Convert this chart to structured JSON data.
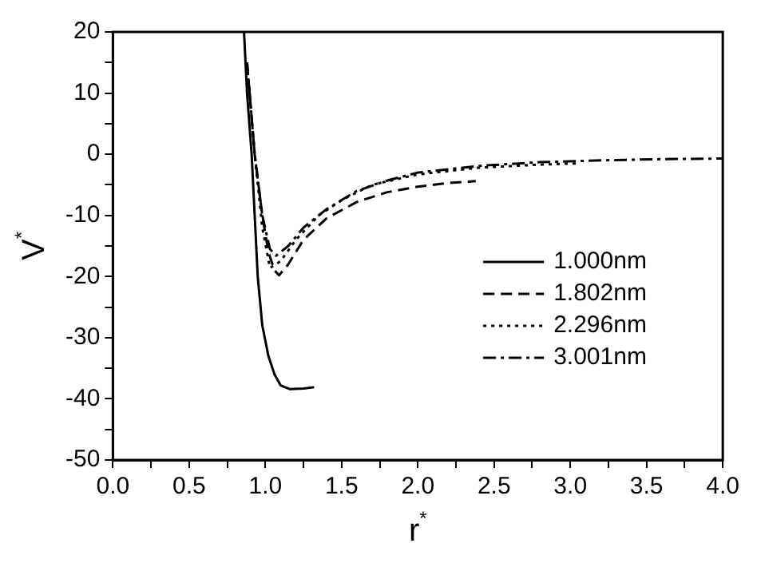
{
  "chart_data": {
    "type": "line",
    "xlabel": "r$^{*}$",
    "ylabel": "V$^{*}$",
    "xlim": [
      0,
      4
    ],
    "xticks": [
      {
        "value": 0,
        "label": "0.0"
      },
      0.5,
      {
        "value": 1,
        "label": "1.0"
      },
      1.5,
      {
        "value": 2,
        "label": "2.0"
      },
      2.5,
      {
        "value": 3,
        "label": "3.0"
      },
      3.5,
      {
        "value": 4,
        "label": "4.0"
      }
    ],
    "ylim": [
      -50,
      20
    ],
    "yticks": [
      -50,
      -40,
      -30,
      -20,
      -10,
      0,
      10,
      20
    ],
    "legend": "right",
    "grid": false,
    "marker": "none",
    "series": [
      {
        "name": "1.000nm",
        "color": "#000000",
        "line_style": "solid",
        "x": [
          0.86,
          0.88,
          0.91,
          0.93,
          0.95,
          0.98,
          1.02,
          1.06,
          1.1,
          1.16,
          1.25,
          1.32
        ],
        "values": [
          20,
          10,
          0,
          -10,
          -20,
          -28,
          -33,
          -36,
          -37.8,
          -38.4,
          -38.3,
          -38.1
        ]
      },
      {
        "name": "1.802nm",
        "color": "#000000",
        "line_style": "dashed",
        "x": [
          0.88,
          0.93,
          0.98,
          1.02,
          1.06,
          1.09,
          1.15,
          1.25,
          1.4,
          1.6,
          1.8,
          2.0,
          2.2,
          2.38
        ],
        "values": [
          15,
          0,
          -10,
          -16,
          -19,
          -19.8,
          -18,
          -14,
          -10.5,
          -7.8,
          -6.2,
          -5.3,
          -4.7,
          -4.4
        ]
      },
      {
        "name": "2.296nm",
        "color": "#000000",
        "line_style": "dotted",
        "x": [
          0.88,
          0.93,
          0.98,
          1.03,
          1.1,
          1.2,
          1.35,
          1.5,
          1.7,
          2.0,
          2.4,
          2.8,
          3.04
        ],
        "values": [
          15,
          0,
          -12,
          -18.6,
          -17.5,
          -14,
          -10,
          -7.5,
          -5,
          -3.3,
          -2.2,
          -1.7,
          -1.5
        ]
      },
      {
        "name": "3.001nm",
        "color": "#000000",
        "line_style": "dashdot",
        "x": [
          0.88,
          0.93,
          0.98,
          1.03,
          1.07,
          1.15,
          1.25,
          1.4,
          1.6,
          1.8,
          2.0,
          2.4,
          2.8,
          3.2,
          3.6,
          4.0
        ],
        "values": [
          15,
          0,
          -10,
          -15.5,
          -16.6,
          -15,
          -12,
          -9,
          -6,
          -4.3,
          -3,
          -1.9,
          -1.3,
          -1,
          -0.8,
          -0.7
        ]
      }
    ]
  }
}
